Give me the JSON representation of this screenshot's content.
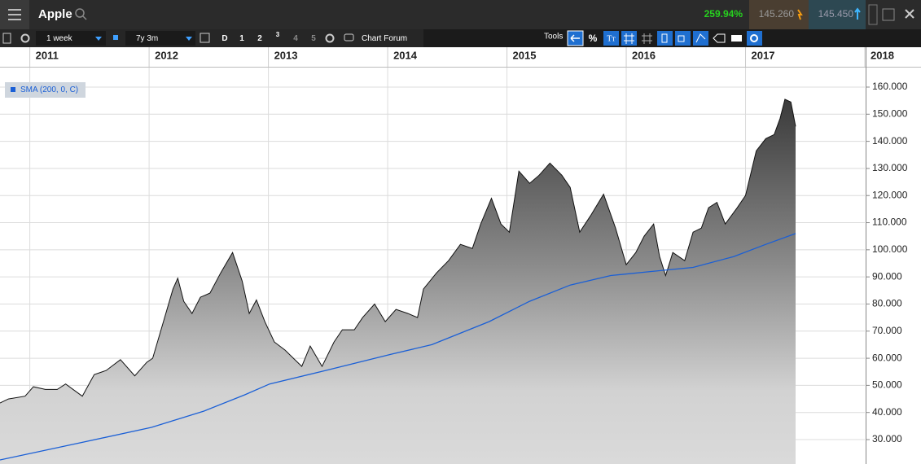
{
  "header": {
    "title": "Apple",
    "change": "259.94%",
    "bid": "145.260",
    "ask": "145.450"
  },
  "toolbar": {
    "interval": "1 week",
    "range": "7y 3m",
    "buttons": [
      "D",
      "1",
      "2",
      "3",
      "4",
      "5"
    ],
    "forum": "Chart Forum",
    "tools": "Tools",
    "percent": "%",
    "text_tool": "Tт"
  },
  "chart_data": {
    "type": "line",
    "xlim": [
      2010.75,
      2018
    ],
    "xticks": [
      2011,
      2012,
      2013,
      2014,
      2015,
      2016,
      2017,
      2018
    ],
    "ylim": [
      21,
      167.2
    ],
    "yticks": [
      {
        "value": 30,
        "label": "30.000"
      },
      {
        "value": 40,
        "label": "40.000"
      },
      {
        "value": 50,
        "label": "50.000"
      },
      {
        "value": 60,
        "label": "60.000"
      },
      {
        "value": 70,
        "label": "70.000"
      },
      {
        "value": 80,
        "label": "80.000"
      },
      {
        "value": 90,
        "label": "90.000"
      },
      {
        "value": 100,
        "label": "100.000"
      },
      {
        "value": 110,
        "label": "110.000"
      },
      {
        "value": 120,
        "label": "120.000"
      },
      {
        "value": 130,
        "label": "130.000"
      },
      {
        "value": 140,
        "label": "140.000"
      },
      {
        "value": 150,
        "label": "150.000"
      },
      {
        "value": 160,
        "label": "160.000"
      }
    ],
    "grid": true,
    "legend": "top-left",
    "series": [
      {
        "color": "#111111",
        "fill": true,
        "x": [
          2010.75,
          2010.82,
          2010.96,
          2011.03,
          2011.13,
          2011.23,
          2011.3,
          2011.44,
          2011.54,
          2011.64,
          2011.76,
          2011.88,
          2011.98,
          2012.03,
          2012.12,
          2012.2,
          2012.24,
          2012.29,
          2012.36,
          2012.43,
          2012.51,
          2012.6,
          2012.7,
          2012.78,
          2012.84,
          2012.9,
          2012.97,
          2013.05,
          2013.14,
          2013.21,
          2013.28,
          2013.35,
          2013.45,
          2013.55,
          2013.62,
          2013.72,
          2013.79,
          2013.89,
          2013.98,
          2014.07,
          2014.17,
          2014.25,
          2014.3,
          2014.41,
          2014.51,
          2014.61,
          2014.71,
          2014.78,
          2014.87,
          2014.95,
          2015.02,
          2015.1,
          2015.19,
          2015.27,
          2015.36,
          2015.46,
          2015.53,
          2015.61,
          2015.7,
          2015.81,
          2015.91,
          2016.0,
          2016.08,
          2016.15,
          2016.23,
          2016.28,
          2016.33,
          2016.39,
          2016.49,
          2016.56,
          2016.63,
          2016.69,
          2016.76,
          2016.83,
          2016.93,
          2017.0,
          2017.09,
          2017.17,
          2017.24,
          2017.29,
          2017.33,
          2017.38,
          2017.42
        ],
        "values": [
          43.5,
          45,
          46,
          49.5,
          48.5,
          48.5,
          50.5,
          46,
          54,
          55.5,
          59.5,
          53.5,
          58.5,
          60,
          73.5,
          85.5,
          89.5,
          81,
          76.5,
          82.5,
          84,
          91.5,
          99,
          88.5,
          76.5,
          81.5,
          73.5,
          66,
          63,
          60,
          57,
          64.5,
          57,
          66,
          70.5,
          70.5,
          75,
          80,
          73.5,
          78,
          76.5,
          75,
          85.5,
          91.5,
          96,
          102,
          100.5,
          109.5,
          119,
          109.5,
          106.5,
          129,
          124.5,
          127.5,
          132,
          127.5,
          123,
          106.5,
          112.5,
          120.5,
          108,
          94.5,
          99,
          105,
          109.5,
          97.5,
          90.5,
          99,
          96,
          106.5,
          108,
          115.5,
          117.5,
          109.5,
          115.5,
          120,
          136.5,
          141,
          142.5,
          148.5,
          155.5,
          154.5,
          145.5
        ]
      },
      {
        "name": "SMA (200, 0, C)",
        "color": "#1a5fd6",
        "x": [
          2010.75,
          2011.44,
          2012.02,
          2012.46,
          2012.8,
          2013.01,
          2013.48,
          2014.03,
          2014.37,
          2014.85,
          2015.19,
          2015.53,
          2015.87,
          2016.21,
          2016.56,
          2016.9,
          2017.17,
          2017.42
        ],
        "values": [
          22.5,
          29,
          34.5,
          40.5,
          46.5,
          50.5,
          55.5,
          61.5,
          65,
          73.5,
          81,
          87,
          90.5,
          92,
          93.5,
          97.5,
          102,
          106
        ]
      }
    ]
  }
}
